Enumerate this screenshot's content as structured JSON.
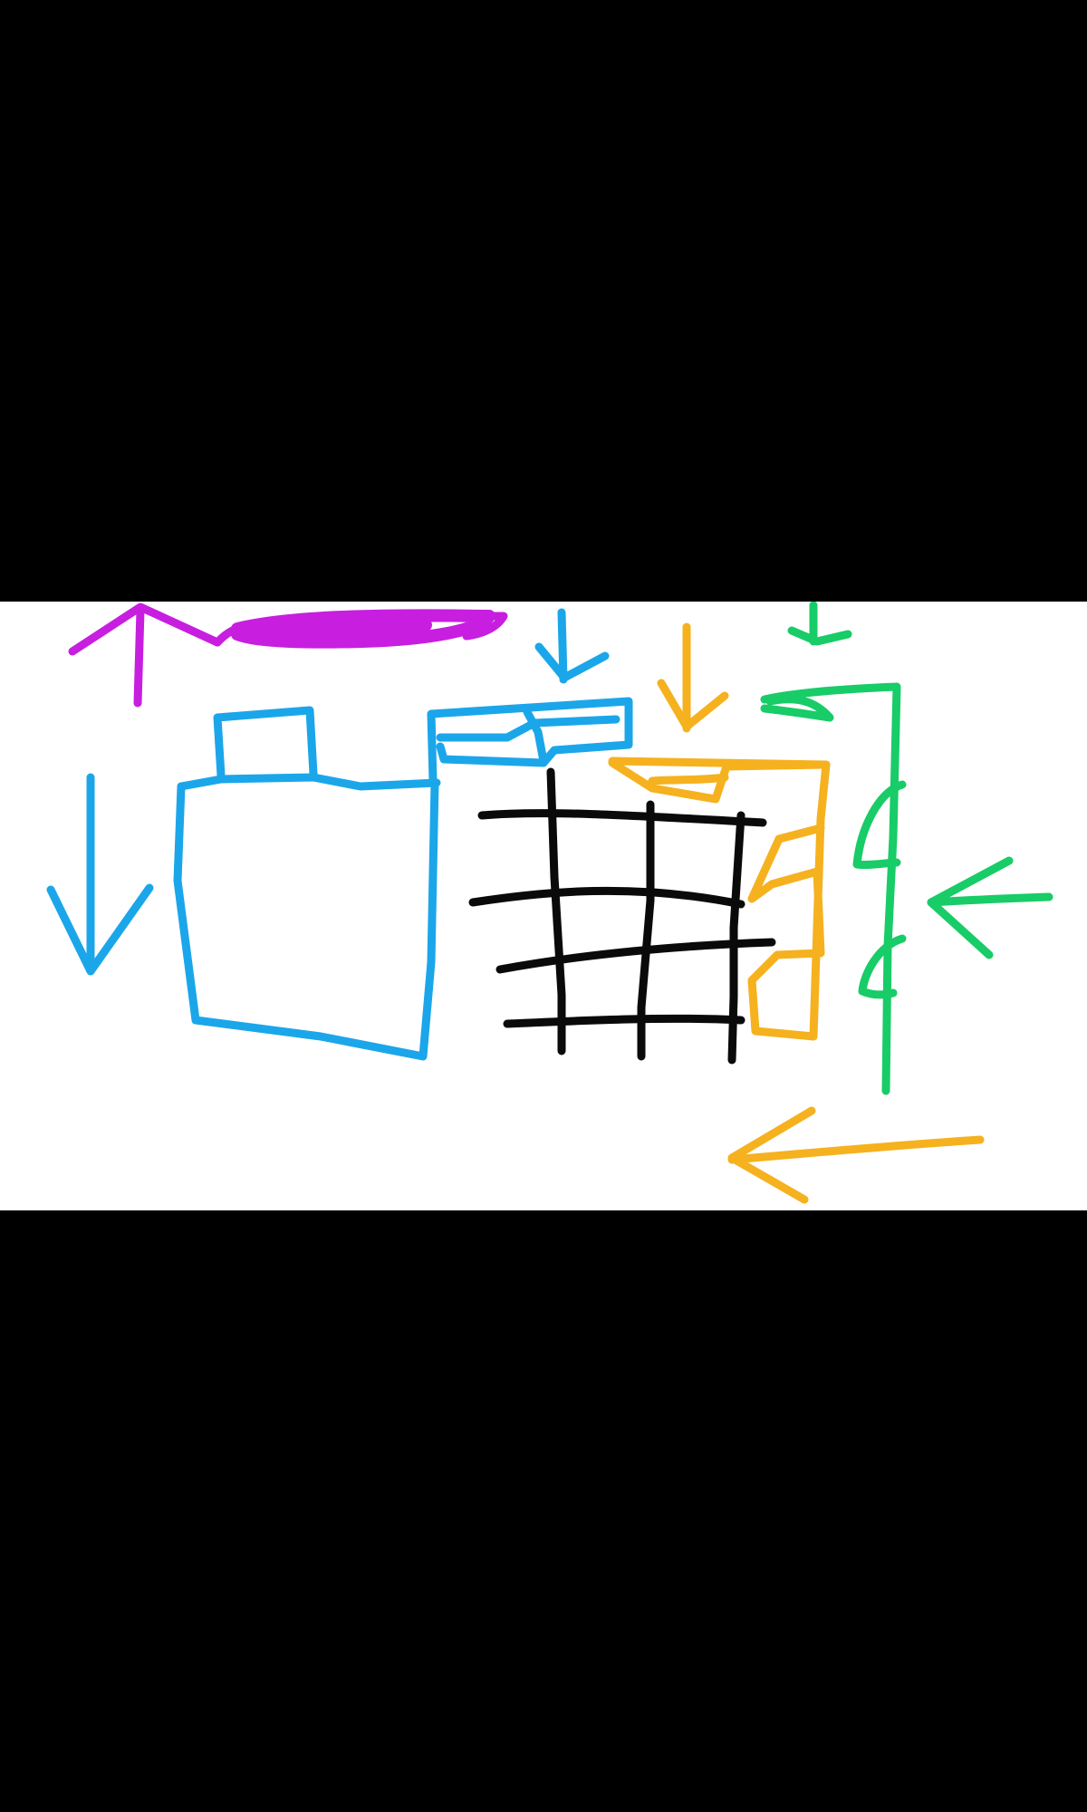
{
  "canvas": {
    "background": "#000000",
    "band_color": "#ffffff"
  },
  "colors": {
    "magenta": "#c71ee0",
    "blue": "#1ba6ea",
    "black": "#0a0a0a",
    "orange": "#f6b11f",
    "green": "#18cc68"
  },
  "shapes": [
    {
      "name": "magenta-up-arrow-icon",
      "color": "magenta"
    },
    {
      "name": "magenta-scribble-bar",
      "color": "magenta"
    },
    {
      "name": "blue-down-arrow-icon-left",
      "color": "blue"
    },
    {
      "name": "blue-down-arrow-icon-top",
      "color": "blue"
    },
    {
      "name": "blue-box-shape",
      "color": "blue"
    },
    {
      "name": "blue-bar-shape",
      "color": "blue"
    },
    {
      "name": "black-grid-shape",
      "color": "black"
    },
    {
      "name": "orange-down-arrow-icon",
      "color": "orange"
    },
    {
      "name": "orange-column-shape",
      "color": "orange"
    },
    {
      "name": "orange-left-arrow-icon",
      "color": "orange"
    },
    {
      "name": "green-down-arrow-icon",
      "color": "green"
    },
    {
      "name": "green-rail-shape",
      "color": "green"
    },
    {
      "name": "green-left-arrow-icon",
      "color": "green"
    }
  ]
}
